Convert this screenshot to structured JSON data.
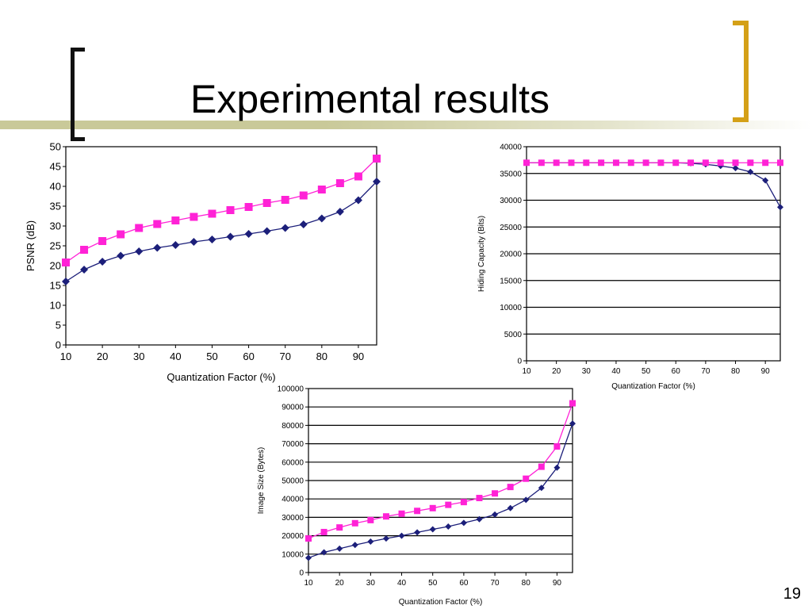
{
  "slide": {
    "title": "Experimental results",
    "page_number": "19"
  },
  "colors": {
    "series_magenta": "#ff22d6",
    "series_navy": "#1c1f7a",
    "axis": "#000000",
    "title_bar": "#c9c999",
    "bracket_gold": "#d4a017",
    "bracket_black": "#111111"
  },
  "chart_data": [
    {
      "type": "line",
      "xlabel": "Quantization Factor (%)",
      "ylabel": "PSNR (dB)",
      "xlim": [
        10,
        95
      ],
      "ylim": [
        0,
        50
      ],
      "grid": false,
      "x_ticks": [
        10,
        20,
        30,
        40,
        50,
        60,
        70,
        80,
        90
      ],
      "y_ticks": [
        0,
        5,
        10,
        15,
        20,
        25,
        30,
        35,
        40,
        45,
        50
      ],
      "x": [
        10,
        15,
        20,
        25,
        30,
        35,
        40,
        45,
        50,
        55,
        60,
        65,
        70,
        75,
        80,
        85,
        90,
        95
      ],
      "series": [
        {
          "color": "#ff22d6",
          "marker": "square",
          "values": [
            20.8,
            24,
            26.2,
            27.9,
            29.5,
            30.5,
            31.4,
            32.3,
            33.1,
            34,
            34.8,
            35.8,
            36.6,
            37.7,
            39.2,
            40.8,
            42.5,
            47
          ]
        },
        {
          "color": "#1c1f7a",
          "marker": "diamond",
          "values": [
            16,
            19,
            21,
            22.5,
            23.6,
            24.5,
            25.2,
            26,
            26.6,
            27.3,
            28,
            28.7,
            29.5,
            30.4,
            31.9,
            33.6,
            36.5,
            41.2
          ]
        }
      ]
    },
    {
      "type": "line",
      "xlabel": "Quantization Factor (%)",
      "ylabel": "Hiding Capacity (Bits)",
      "xlim": [
        10,
        95
      ],
      "ylim": [
        0,
        40000
      ],
      "grid": true,
      "x_ticks": [
        10,
        20,
        30,
        40,
        50,
        60,
        70,
        80,
        90
      ],
      "y_ticks": [
        0,
        5000,
        10000,
        15000,
        20000,
        25000,
        30000,
        35000,
        40000
      ],
      "x": [
        10,
        15,
        20,
        25,
        30,
        35,
        40,
        45,
        50,
        55,
        60,
        65,
        70,
        75,
        80,
        85,
        90,
        95
      ],
      "series": [
        {
          "color": "#1c1f7a",
          "marker": "diamond",
          "values": [
            37000,
            37000,
            37000,
            37000,
            37000,
            37000,
            37000,
            37000,
            37000,
            37000,
            37000,
            36900,
            36700,
            36400,
            36000,
            35300,
            33700,
            28700
          ]
        },
        {
          "color": "#ff22d6",
          "marker": "square",
          "values": [
            37000,
            37000,
            37000,
            37000,
            37000,
            37000,
            37000,
            37000,
            37000,
            37000,
            37000,
            37000,
            37000,
            37000,
            37000,
            37000,
            37000,
            37000
          ]
        }
      ]
    },
    {
      "type": "line",
      "xlabel": "Quantization Factor (%)",
      "ylabel": "Image Size (Bytes)",
      "xlim": [
        10,
        95
      ],
      "ylim": [
        0,
        100000
      ],
      "grid": true,
      "x_ticks": [
        10,
        20,
        30,
        40,
        50,
        60,
        70,
        80,
        90
      ],
      "y_ticks": [
        0,
        10000,
        20000,
        30000,
        40000,
        50000,
        60000,
        70000,
        80000,
        90000,
        100000
      ],
      "x": [
        10,
        15,
        20,
        25,
        30,
        35,
        40,
        45,
        50,
        55,
        60,
        65,
        70,
        75,
        80,
        85,
        90,
        95
      ],
      "series": [
        {
          "color": "#ff22d6",
          "marker": "square",
          "values": [
            18500,
            22000,
            24500,
            26800,
            28500,
            30500,
            32000,
            33500,
            35000,
            36800,
            38300,
            40500,
            43000,
            46500,
            51000,
            57500,
            68500,
            92000
          ]
        },
        {
          "color": "#1c1f7a",
          "marker": "diamond",
          "values": [
            8000,
            11000,
            13000,
            15000,
            16800,
            18500,
            20000,
            21800,
            23500,
            25000,
            27000,
            29000,
            31500,
            35000,
            39500,
            46000,
            57000,
            81000
          ]
        }
      ]
    }
  ]
}
